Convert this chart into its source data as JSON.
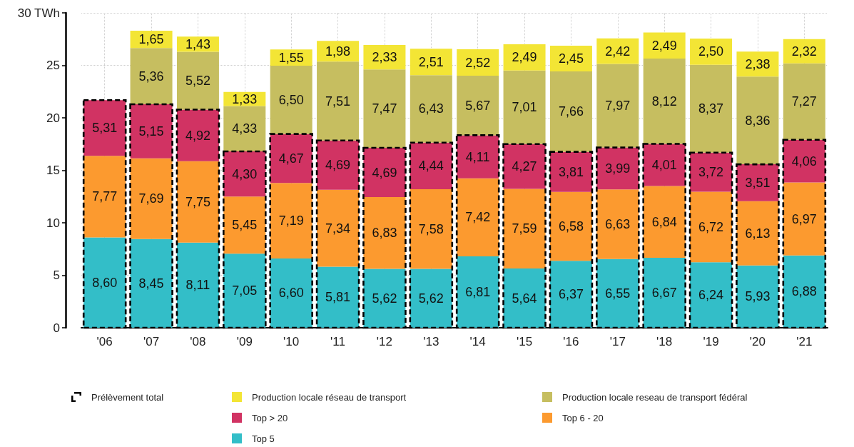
{
  "chart_data": {
    "type": "bar",
    "categories": [
      "'06",
      "'07",
      "'08",
      "'09",
      "'10",
      "'11",
      "'12",
      "'13",
      "'14",
      "'15",
      "'16",
      "'17",
      "'18",
      "'19",
      "'20",
      "'21"
    ],
    "ylim": [
      0,
      30
    ],
    "yticks": [
      0,
      5,
      10,
      15,
      20,
      25,
      {
        "value": 30,
        "label": "30 TWh"
      }
    ],
    "grid": true,
    "legend": "bottom",
    "series": [
      {
        "name": "Top 5",
        "color": "#33bec8",
        "base": [
          0,
          0,
          0,
          0,
          0,
          0,
          0,
          0,
          0,
          0,
          0,
          0,
          0,
          0,
          0,
          0
        ],
        "values": [
          8.6,
          8.45,
          8.11,
          7.05,
          6.6,
          5.81,
          5.62,
          5.62,
          6.81,
          5.64,
          6.37,
          6.55,
          6.67,
          6.24,
          5.93,
          6.88
        ],
        "value_labels": [
          "8,60",
          "8,45",
          "8,11",
          "7,05",
          "6,60",
          "5,81",
          "5,62",
          "5,62",
          "6,81",
          "5,64",
          "6,37",
          "6,55",
          "6,67",
          "6,24",
          "5,93",
          "6,88"
        ]
      },
      {
        "name": "Top 6 - 20",
        "color": "#fc9a2f",
        "base": [
          8.6,
          8.45,
          8.11,
          7.05,
          6.6,
          5.81,
          5.62,
          5.62,
          6.81,
          5.64,
          6.37,
          6.55,
          6.67,
          6.24,
          5.93,
          6.88
        ],
        "values": [
          7.77,
          7.69,
          7.75,
          5.45,
          7.19,
          7.34,
          6.83,
          7.58,
          7.42,
          7.59,
          6.58,
          6.63,
          6.84,
          6.72,
          6.13,
          6.97
        ],
        "value_labels": [
          "7,77",
          "7,69",
          "7,75",
          "5,45",
          "7,19",
          "7,34",
          "6,83",
          "7,58",
          "7,42",
          "7,59",
          "6,58",
          "6,63",
          "6,84",
          "6,72",
          "6,13",
          "6,97"
        ]
      },
      {
        "name": "Top > 20",
        "color": "#d13363",
        "base": [
          16.37,
          16.14,
          15.86,
          12.5,
          13.79,
          13.15,
          12.45,
          13.2,
          14.23,
          13.23,
          12.95,
          13.18,
          13.51,
          12.96,
          12.06,
          13.85
        ],
        "values": [
          5.31,
          5.15,
          4.92,
          4.3,
          4.67,
          4.69,
          4.69,
          4.44,
          4.11,
          4.27,
          3.81,
          3.99,
          4.01,
          3.72,
          3.51,
          4.06
        ],
        "value_labels": [
          "5,31",
          "5,15",
          "4,92",
          "4,30",
          "4,67",
          "4,69",
          "4,69",
          "4,44",
          "4,11",
          "4,27",
          "3,81",
          "3,99",
          "4,01",
          "3,72",
          "3,51",
          "4,06"
        ]
      },
      {
        "name": "Production locale reseau de transport fédéral",
        "color": "#c6be60",
        "base": [
          null,
          21.29,
          20.78,
          16.8,
          18.46,
          17.84,
          17.14,
          17.64,
          18.34,
          17.5,
          16.76,
          17.17,
          17.52,
          16.68,
          15.57,
          17.91
        ],
        "values": [
          null,
          5.36,
          5.52,
          4.33,
          6.5,
          7.51,
          7.47,
          6.43,
          5.67,
          7.01,
          7.66,
          7.97,
          8.12,
          8.37,
          8.36,
          7.27
        ],
        "value_labels": [
          null,
          "5,36",
          "5,52",
          "4,33",
          "6,50",
          "7,51",
          "7,47",
          "6,43",
          "5,67",
          "7,01",
          "7,66",
          "7,97",
          "8,12",
          "8,37",
          "8,36",
          "7,27"
        ]
      },
      {
        "name": "Production locale réseau de transport",
        "color": "#f3e535",
        "base": [
          null,
          26.65,
          26.3,
          21.13,
          24.96,
          25.35,
          24.61,
          24.07,
          24.01,
          24.51,
          24.42,
          25.14,
          25.64,
          25.05,
          23.93,
          25.18
        ],
        "values": [
          null,
          1.65,
          1.43,
          1.33,
          1.55,
          1.98,
          2.33,
          2.51,
          2.52,
          2.49,
          2.45,
          2.42,
          2.49,
          2.5,
          2.38,
          2.32
        ],
        "value_labels": [
          null,
          "1,65",
          "1,43",
          "1,33",
          "1,55",
          "1,98",
          "2,33",
          "2,51",
          "2,52",
          "2,49",
          "2,45",
          "2,42",
          "2,49",
          "2,50",
          "2,38",
          "2,32"
        ]
      },
      {
        "name": "Prélèvement total",
        "line_style": "dashed",
        "color": "#000000",
        "base": [
          0,
          0,
          0,
          0,
          0,
          0,
          0,
          0,
          0,
          0,
          0,
          0,
          0,
          0,
          0,
          0
        ],
        "values": [
          21.68,
          21.29,
          20.78,
          16.8,
          18.46,
          17.84,
          17.14,
          17.64,
          18.34,
          17.5,
          16.76,
          17.17,
          17.52,
          16.68,
          15.57,
          17.91
        ]
      }
    ]
  }
}
